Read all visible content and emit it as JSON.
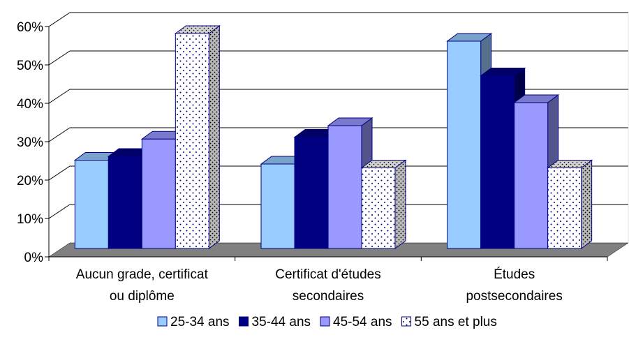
{
  "chart_data": {
    "type": "bar",
    "title": "",
    "xlabel": "",
    "ylabel": "",
    "ylim": [
      0,
      60
    ],
    "y_ticks": [
      "0%",
      "10%",
      "20%",
      "30%",
      "40%",
      "50%",
      "60%"
    ],
    "y_unit": "%",
    "grid": true,
    "legend_position": "bottom",
    "categories": [
      [
        "Aucun grade, certificat",
        "ou diplôme"
      ],
      [
        "Certificat d'études",
        "secondaires"
      ],
      [
        "Études",
        "postsecondaires"
      ]
    ],
    "series": [
      {
        "name": "25-34 ans",
        "values": [
          23,
          22,
          54
        ],
        "color": "#99ccff",
        "pattern": "solid"
      },
      {
        "name": "35-44 ans",
        "values": [
          24,
          29,
          45
        ],
        "color": "#000080",
        "pattern": "solid"
      },
      {
        "name": "45-54 ans",
        "values": [
          28.5,
          32,
          38
        ],
        "color": "#9999ff",
        "pattern": "solid"
      },
      {
        "name": "55 ans et plus",
        "values": [
          56,
          21,
          21
        ],
        "color": "#ffffff",
        "pattern": "dotted"
      }
    ],
    "floor_color": "#808080"
  }
}
